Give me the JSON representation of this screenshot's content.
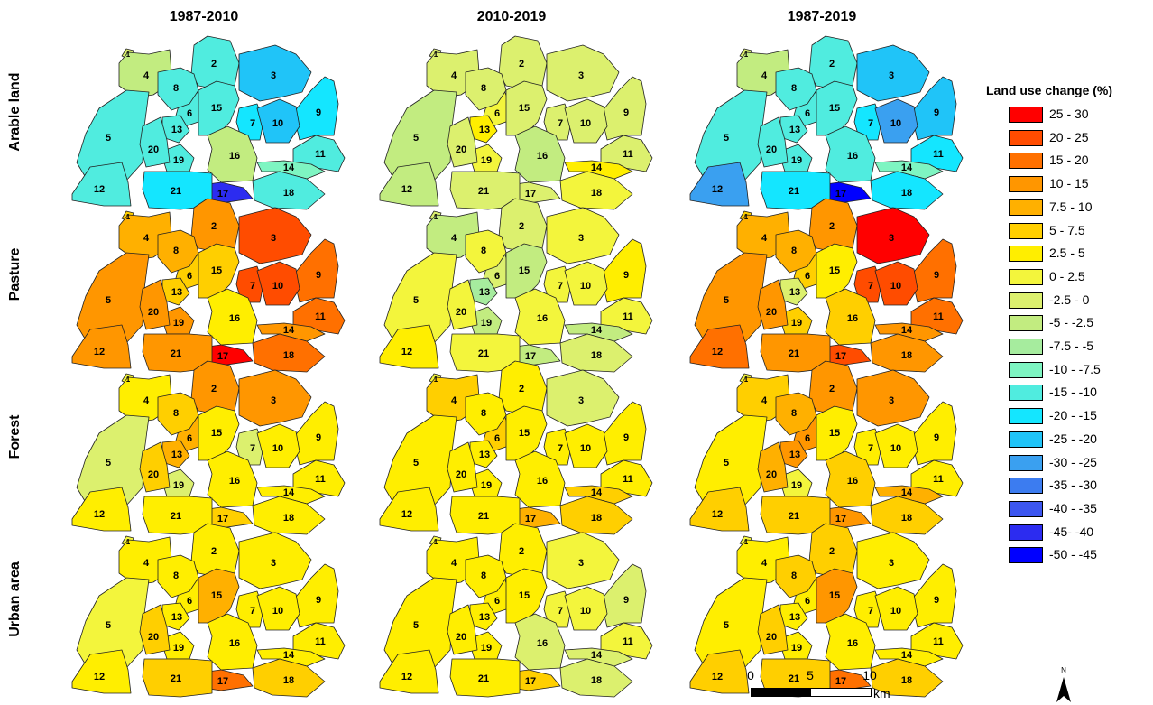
{
  "columns": [
    "1987-2010",
    "2010-2019",
    "1987-2019"
  ],
  "rows": [
    "Arable land",
    "Pasture",
    "Forest",
    "Urban area"
  ],
  "legend": {
    "title": "Land use change (%)",
    "classes": [
      {
        "label": "25 - 30",
        "color": "#ff0000"
      },
      {
        "label": "20 - 25",
        "color": "#ff4c00"
      },
      {
        "label": "15 - 20",
        "color": "#ff7000"
      },
      {
        "label": "10 - 15",
        "color": "#ff9600"
      },
      {
        "label": "7.5 - 10",
        "color": "#ffb000"
      },
      {
        "label": "5 - 7.5",
        "color": "#ffcf00"
      },
      {
        "label": "2.5 - 5",
        "color": "#ffee00"
      },
      {
        "label": "0 - 2.5",
        "color": "#f3f53c"
      },
      {
        "label": "-2.5 - 0",
        "color": "#dcf06e"
      },
      {
        "label": "-5 - -2.5",
        "color": "#c2ec80"
      },
      {
        "label": "-7.5 - -5",
        "color": "#a6ec9e"
      },
      {
        "label": "-10 - -7.5",
        "color": "#7ef5c2"
      },
      {
        "label": "-15 - -10",
        "color": "#50ecdf"
      },
      {
        "label": "-20 - -15",
        "color": "#14e6ff"
      },
      {
        "label": "-25 - -20",
        "color": "#20c4f8"
      },
      {
        "label": "-30 - -25",
        "color": "#3aa0f0"
      },
      {
        "label": "-35 - -30",
        "color": "#3c7cf0"
      },
      {
        "label": "-40 - -35",
        "color": "#3c56f0"
      },
      {
        "label": "-45- -40",
        "color": "#2c2cf0"
      },
      {
        "label": "-50 - -45",
        "color": "#0000ff"
      }
    ]
  },
  "subbasins": [
    "1",
    "2",
    "3",
    "4",
    "5",
    "6",
    "7",
    "8",
    "9",
    "10",
    "11",
    "12",
    "13",
    "14",
    "15",
    "16",
    "17",
    "18",
    "19",
    "20",
    "21"
  ],
  "panels": [
    {
      "row": "Arable land",
      "column": "1987-2010",
      "classes": {
        "1": "-2.5 - 0",
        "2": "-15 - -10",
        "3": "-25 - -20",
        "4": "-5 - -2.5",
        "5": "-15 - -10",
        "6": "-15 - -10",
        "7": "-20 - -15",
        "8": "-15 - -10",
        "9": "-20 - -15",
        "10": "-25 - -20",
        "11": "-15 - -10",
        "12": "-15 - -10",
        "13": "-15 - -10",
        "14": "-10 - -7.5",
        "15": "-15 - -10",
        "16": "-5 - -2.5",
        "17": "-45- -40",
        "18": "-15 - -10",
        "19": "-15 - -10",
        "20": "-15 - -10",
        "21": "-20 - -15"
      }
    },
    {
      "row": "Arable land",
      "column": "2010-2019",
      "classes": {
        "1": "-2.5 - 0",
        "2": "-2.5 - 0",
        "3": "-2.5 - 0",
        "4": "-2.5 - 0",
        "5": "-5 - -2.5",
        "6": "0 - 2.5",
        "7": "-2.5 - 0",
        "8": "-2.5 - 0",
        "9": "-2.5 - 0",
        "10": "-2.5 - 0",
        "11": "-2.5 - 0",
        "12": "-5 - -2.5",
        "13": "2.5 - 5",
        "14": "2.5 - 5",
        "15": "-2.5 - 0",
        "16": "-5 - -2.5",
        "17": "-2.5 - 0",
        "18": "0 - 2.5",
        "19": "0 - 2.5",
        "20": "-2.5 - 0",
        "21": "-2.5 - 0"
      }
    },
    {
      "row": "Arable land",
      "column": "1987-2019",
      "classes": {
        "1": "-2.5 - 0",
        "2": "-15 - -10",
        "3": "-25 - -20",
        "4": "-5 - -2.5",
        "5": "-15 - -10",
        "6": "-15 - -10",
        "7": "-20 - -15",
        "8": "-15 - -10",
        "9": "-25 - -20",
        "10": "-30 - -25",
        "11": "-20 - -15",
        "12": "-30 - -25",
        "13": "-15 - -10",
        "14": "-10 - -7.5",
        "15": "-15 - -10",
        "16": "-15 - -10",
        "17": "-50 - -45",
        "18": "-20 - -15",
        "19": "-15 - -10",
        "20": "-15 - -10",
        "21": "-20 - -15"
      }
    },
    {
      "row": "Pasture",
      "column": "1987-2010",
      "classes": {
        "1": "5 - 7.5",
        "2": "10 - 15",
        "3": "20 - 25",
        "4": "7.5 - 10",
        "5": "10 - 15",
        "6": "5 - 7.5",
        "7": "20 - 25",
        "8": "7.5 - 10",
        "9": "15 - 20",
        "10": "20 - 25",
        "11": "15 - 20",
        "12": "10 - 15",
        "13": "5 - 7.5",
        "14": "10 - 15",
        "15": "5 - 7.5",
        "16": "2.5 - 5",
        "17": "25 - 30",
        "18": "15 - 20",
        "19": "10 - 15",
        "20": "10 - 15",
        "21": "10 - 15"
      }
    },
    {
      "row": "Pasture",
      "column": "2010-2019",
      "classes": {
        "1": "-2.5 - 0",
        "2": "-2.5 - 0",
        "3": "0 - 2.5",
        "4": "-5 - -2.5",
        "5": "0 - 2.5",
        "6": "-2.5 - 0",
        "7": "0 - 2.5",
        "8": "0 - 2.5",
        "9": "2.5 - 5",
        "10": "0 - 2.5",
        "11": "0 - 2.5",
        "12": "2.5 - 5",
        "13": "-7.5 - -5",
        "14": "-5 - -2.5",
        "15": "-5 - -2.5",
        "16": "0 - 2.5",
        "17": "-5 - -2.5",
        "18": "-2.5 - 0",
        "19": "-5 - -2.5",
        "20": "0 - 2.5",
        "21": "0 - 2.5"
      }
    },
    {
      "row": "Pasture",
      "column": "1987-2019",
      "classes": {
        "1": "5 - 7.5",
        "2": "10 - 15",
        "3": "25 - 30",
        "4": "7.5 - 10",
        "5": "10 - 15",
        "6": "5 - 7.5",
        "7": "20 - 25",
        "8": "7.5 - 10",
        "9": "15 - 20",
        "10": "20 - 25",
        "11": "15 - 20",
        "12": "15 - 20",
        "13": "-2.5 - 0",
        "14": "10 - 15",
        "15": "2.5 - 5",
        "16": "5 - 7.5",
        "17": "20 - 25",
        "18": "10 - 15",
        "19": "5 - 7.5",
        "20": "10 - 15",
        "21": "10 - 15"
      }
    },
    {
      "row": "Forest",
      "column": "1987-2010",
      "classes": {
        "1": "0 - 2.5",
        "2": "10 - 15",
        "3": "10 - 15",
        "4": "2.5 - 5",
        "5": "-2.5 - 0",
        "6": "7.5 - 10",
        "7": "-2.5 - 0",
        "8": "5 - 7.5",
        "9": "2.5 - 5",
        "10": "2.5 - 5",
        "11": "2.5 - 5",
        "12": "2.5 - 5",
        "13": "7.5 - 10",
        "14": "2.5 - 5",
        "15": "2.5 - 5",
        "16": "2.5 - 5",
        "17": "5 - 7.5",
        "18": "2.5 - 5",
        "19": "-2.5 - 0",
        "20": "5 - 7.5",
        "21": "2.5 - 5"
      }
    },
    {
      "row": "Forest",
      "column": "2010-2019",
      "classes": {
        "1": "0 - 2.5",
        "2": "2.5 - 5",
        "3": "-2.5 - 0",
        "4": "5 - 7.5",
        "5": "2.5 - 5",
        "6": "5 - 7.5",
        "7": "2.5 - 5",
        "8": "2.5 - 5",
        "9": "2.5 - 5",
        "10": "2.5 - 5",
        "11": "2.5 - 5",
        "12": "2.5 - 5",
        "13": "2.5 - 5",
        "14": "5 - 7.5",
        "15": "2.5 - 5",
        "16": "2.5 - 5",
        "17": "7.5 - 10",
        "18": "5 - 7.5",
        "19": "2.5 - 5",
        "20": "2.5 - 5",
        "21": "2.5 - 5"
      }
    },
    {
      "row": "Forest",
      "column": "1987-2019",
      "classes": {
        "1": "0 - 2.5",
        "2": "10 - 15",
        "3": "10 - 15",
        "4": "5 - 7.5",
        "5": "2.5 - 5",
        "6": "10 - 15",
        "7": "2.5 - 5",
        "8": "7.5 - 10",
        "9": "2.5 - 5",
        "10": "2.5 - 5",
        "11": "2.5 - 5",
        "12": "5 - 7.5",
        "13": "10 - 15",
        "14": "7.5 - 10",
        "15": "2.5 - 5",
        "16": "5 - 7.5",
        "17": "10 - 15",
        "18": "5 - 7.5",
        "19": "0 - 2.5",
        "20": "7.5 - 10",
        "21": "5 - 7.5"
      }
    },
    {
      "row": "Urban area",
      "column": "1987-2010",
      "classes": {
        "1": "0 - 2.5",
        "2": "2.5 - 5",
        "3": "2.5 - 5",
        "4": "2.5 - 5",
        "5": "0 - 2.5",
        "6": "2.5 - 5",
        "7": "2.5 - 5",
        "8": "2.5 - 5",
        "9": "2.5 - 5",
        "10": "2.5 - 5",
        "11": "2.5 - 5",
        "12": "2.5 - 5",
        "13": "2.5 - 5",
        "14": "2.5 - 5",
        "15": "7.5 - 10",
        "16": "2.5 - 5",
        "17": "15 - 20",
        "18": "5 - 7.5",
        "19": "2.5 - 5",
        "20": "5 - 7.5",
        "21": "5 - 7.5"
      }
    },
    {
      "row": "Urban area",
      "column": "2010-2019",
      "classes": {
        "1": "0 - 2.5",
        "2": "2.5 - 5",
        "3": "0 - 2.5",
        "4": "2.5 - 5",
        "5": "2.5 - 5",
        "6": "2.5 - 5",
        "7": "0 - 2.5",
        "8": "2.5 - 5",
        "9": "-2.5 - 0",
        "10": "0 - 2.5",
        "11": "0 - 2.5",
        "12": "2.5 - 5",
        "13": "2.5 - 5",
        "14": "-2.5 - 0",
        "15": "2.5 - 5",
        "16": "-2.5 - 0",
        "17": "5 - 7.5",
        "18": "-2.5 - 0",
        "19": "2.5 - 5",
        "20": "2.5 - 5",
        "21": "2.5 - 5"
      }
    },
    {
      "row": "Urban area",
      "column": "1987-2019",
      "classes": {
        "1": "0 - 2.5",
        "2": "5 - 7.5",
        "3": "2.5 - 5",
        "4": "2.5 - 5",
        "5": "2.5 - 5",
        "6": "2.5 - 5",
        "7": "2.5 - 5",
        "8": "5 - 7.5",
        "9": "2.5 - 5",
        "10": "2.5 - 5",
        "11": "2.5 - 5",
        "12": "5 - 7.5",
        "13": "2.5 - 5",
        "14": "2.5 - 5",
        "15": "10 - 15",
        "16": "2.5 - 5",
        "17": "15 - 20",
        "18": "5 - 7.5",
        "19": "2.5 - 5",
        "20": "5 - 7.5",
        "21": "5 - 7.5"
      }
    }
  ],
  "scale_bar": {
    "ticks": [
      "0",
      "5",
      "10"
    ],
    "unit": "km"
  },
  "north_arrow": {
    "label": "N"
  }
}
